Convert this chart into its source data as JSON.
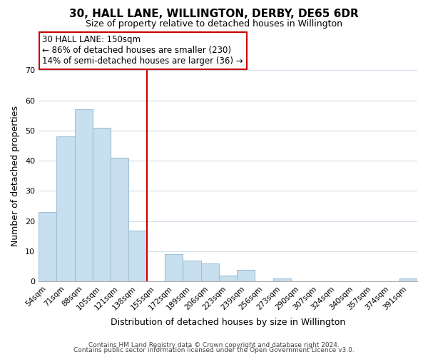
{
  "title": "30, HALL LANE, WILLINGTON, DERBY, DE65 6DR",
  "subtitle": "Size of property relative to detached houses in Willington",
  "xlabel": "Distribution of detached houses by size in Willington",
  "ylabel": "Number of detached properties",
  "bar_labels": [
    "54sqm",
    "71sqm",
    "88sqm",
    "105sqm",
    "121sqm",
    "138sqm",
    "155sqm",
    "172sqm",
    "189sqm",
    "206sqm",
    "223sqm",
    "239sqm",
    "256sqm",
    "273sqm",
    "290sqm",
    "307sqm",
    "324sqm",
    "340sqm",
    "357sqm",
    "374sqm",
    "391sqm"
  ],
  "bar_values": [
    23,
    48,
    57,
    51,
    41,
    17,
    0,
    9,
    7,
    6,
    2,
    4,
    0,
    1,
    0,
    0,
    0,
    0,
    0,
    0,
    1
  ],
  "ylim": [
    0,
    70
  ],
  "yticks": [
    0,
    10,
    20,
    30,
    40,
    50,
    60,
    70
  ],
  "bar_color": "#c8dff0",
  "bar_edge_color": "#a0bfd8",
  "vline_index": 6,
  "vline_color": "#cc0000",
  "annotation_title": "30 HALL LANE: 150sqm",
  "annotation_line1": "← 86% of detached houses are smaller (230)",
  "annotation_line2": "14% of semi-detached houses are larger (36) →",
  "annotation_box_color": "#ffffff",
  "annotation_box_edge": "#cc0000",
  "footer_line1": "Contains HM Land Registry data © Crown copyright and database right 2024.",
  "footer_line2": "Contains public sector information licensed under the Open Government Licence v3.0.",
  "background_color": "#ffffff",
  "grid_color": "#d0dce8"
}
